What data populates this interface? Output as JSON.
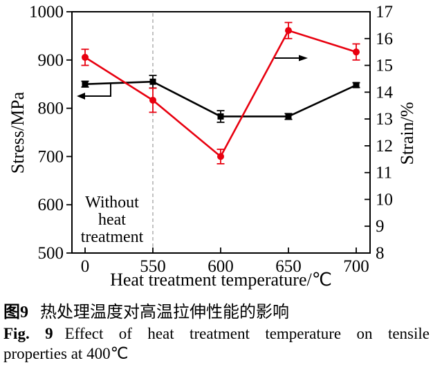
{
  "chart_data": {
    "type": "line",
    "x_categories": [
      "0",
      "550",
      "600",
      "650",
      "700"
    ],
    "xlabel": "Heat treatment temperature/℃",
    "grid": false,
    "legend_position": "none",
    "axes": {
      "left": {
        "label": "Stress/MPa",
        "min": 500,
        "max": 1000,
        "ticks": [
          500,
          600,
          700,
          800,
          900,
          1000
        ]
      },
      "right": {
        "label": "Strain/%",
        "min": 8,
        "max": 17,
        "ticks": [
          8,
          9,
          10,
          11,
          12,
          13,
          14,
          15,
          16,
          17
        ]
      }
    },
    "series": [
      {
        "name": "Stress",
        "axis": "left",
        "color": "#000000",
        "marker": "square",
        "values": [
          850,
          855,
          783,
          783,
          848
        ],
        "errors": [
          6,
          13,
          12,
          6,
          5
        ]
      },
      {
        "name": "Strain",
        "axis": "right",
        "color": "#e8000f",
        "marker": "circle",
        "values": [
          15.3,
          13.7,
          11.6,
          16.3,
          15.5
        ],
        "errors": [
          0.3,
          0.45,
          0.27,
          0.3,
          0.3
        ]
      }
    ],
    "axis_pointers": [
      {
        "series": "Stress",
        "direction": "left"
      },
      {
        "series": "Strain",
        "direction": "right"
      }
    ],
    "guideline_x": "550",
    "annotation": {
      "lines": [
        "Without",
        "heat",
        "treatment"
      ]
    },
    "colors": {
      "frame": "#000000",
      "guideline": "#b3b3b3"
    }
  },
  "figure": {
    "caption_zh_label": "图9",
    "caption_zh_text": "热处理温度对高温拉伸性能的影响",
    "caption_en_label": "Fig. 9",
    "caption_en_line1": "Effect of heat treatment temperature on tensile",
    "caption_en_line2": "properties at 400℃"
  }
}
